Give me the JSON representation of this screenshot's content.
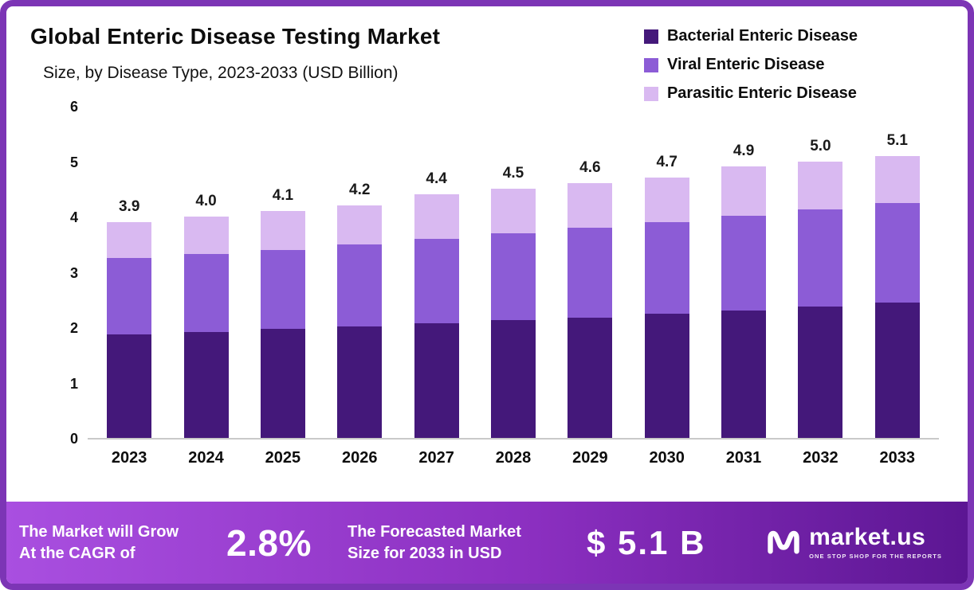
{
  "header": {
    "title": "Global Enteric Disease Testing Market",
    "subtitle": "Size, by Disease Type, 2023-2033 (USD Billion)"
  },
  "colors": {
    "border": "#7c35b5",
    "banner_gradient_start": "#a94fe0",
    "banner_gradient_mid": "#8b2fc0",
    "banner_gradient_end": "#5c1693",
    "bacterial": "#44187a",
    "viral": "#8c5cd6",
    "parasitic": "#d9b9f1"
  },
  "chart_data": {
    "type": "bar",
    "stacked": true,
    "title": "Global Enteric Disease Testing Market Size, by Disease Type, 2023-2033 (USD Billion)",
    "categories": [
      "2023",
      "2024",
      "2025",
      "2026",
      "2027",
      "2028",
      "2029",
      "2030",
      "2031",
      "2032",
      "2033"
    ],
    "series": [
      {
        "name": "Bacterial Enteric Disease",
        "color": "#44187a",
        "values": [
          1.87,
          1.92,
          1.97,
          2.02,
          2.07,
          2.13,
          2.18,
          2.24,
          2.3,
          2.37,
          2.44
        ]
      },
      {
        "name": "Viral Enteric Disease",
        "color": "#8c5cd6",
        "values": [
          1.38,
          1.4,
          1.43,
          1.48,
          1.53,
          1.57,
          1.62,
          1.66,
          1.72,
          1.76,
          1.8
        ]
      },
      {
        "name": "Parasitic Enteric Disease",
        "color": "#d9b9f1",
        "values": [
          0.65,
          0.68,
          0.7,
          0.7,
          0.8,
          0.8,
          0.8,
          0.8,
          0.88,
          0.87,
          0.86
        ]
      }
    ],
    "totals": [
      "3.9",
      "4.0",
      "4.1",
      "4.2",
      "4.4",
      "4.5",
      "4.6",
      "4.7",
      "4.9",
      "5.0",
      "5.1"
    ],
    "xlabel": "",
    "ylabel": "",
    "ylim": [
      0,
      6
    ],
    "yticks": [
      0,
      1,
      2,
      3,
      4,
      5,
      6
    ],
    "grid": false,
    "legend_position": "top-right"
  },
  "legend": [
    {
      "label": "Bacterial Enteric Disease",
      "color": "#44187a"
    },
    {
      "label": "Viral Enteric Disease",
      "color": "#8c5cd6"
    },
    {
      "label": "Parasitic Enteric Disease",
      "color": "#d9b9f1"
    }
  ],
  "banner": {
    "growth_line1": "The Market will Grow",
    "growth_line2": "At the CAGR of",
    "cagr_value": "2.8%",
    "forecast_line1": "The Forecasted Market",
    "forecast_line2": "Size for 2033 in USD",
    "forecast_value": "$ 5.1 B",
    "brand": "market.us",
    "brand_tagline": "ONE STOP SHOP FOR THE REPORTS"
  }
}
